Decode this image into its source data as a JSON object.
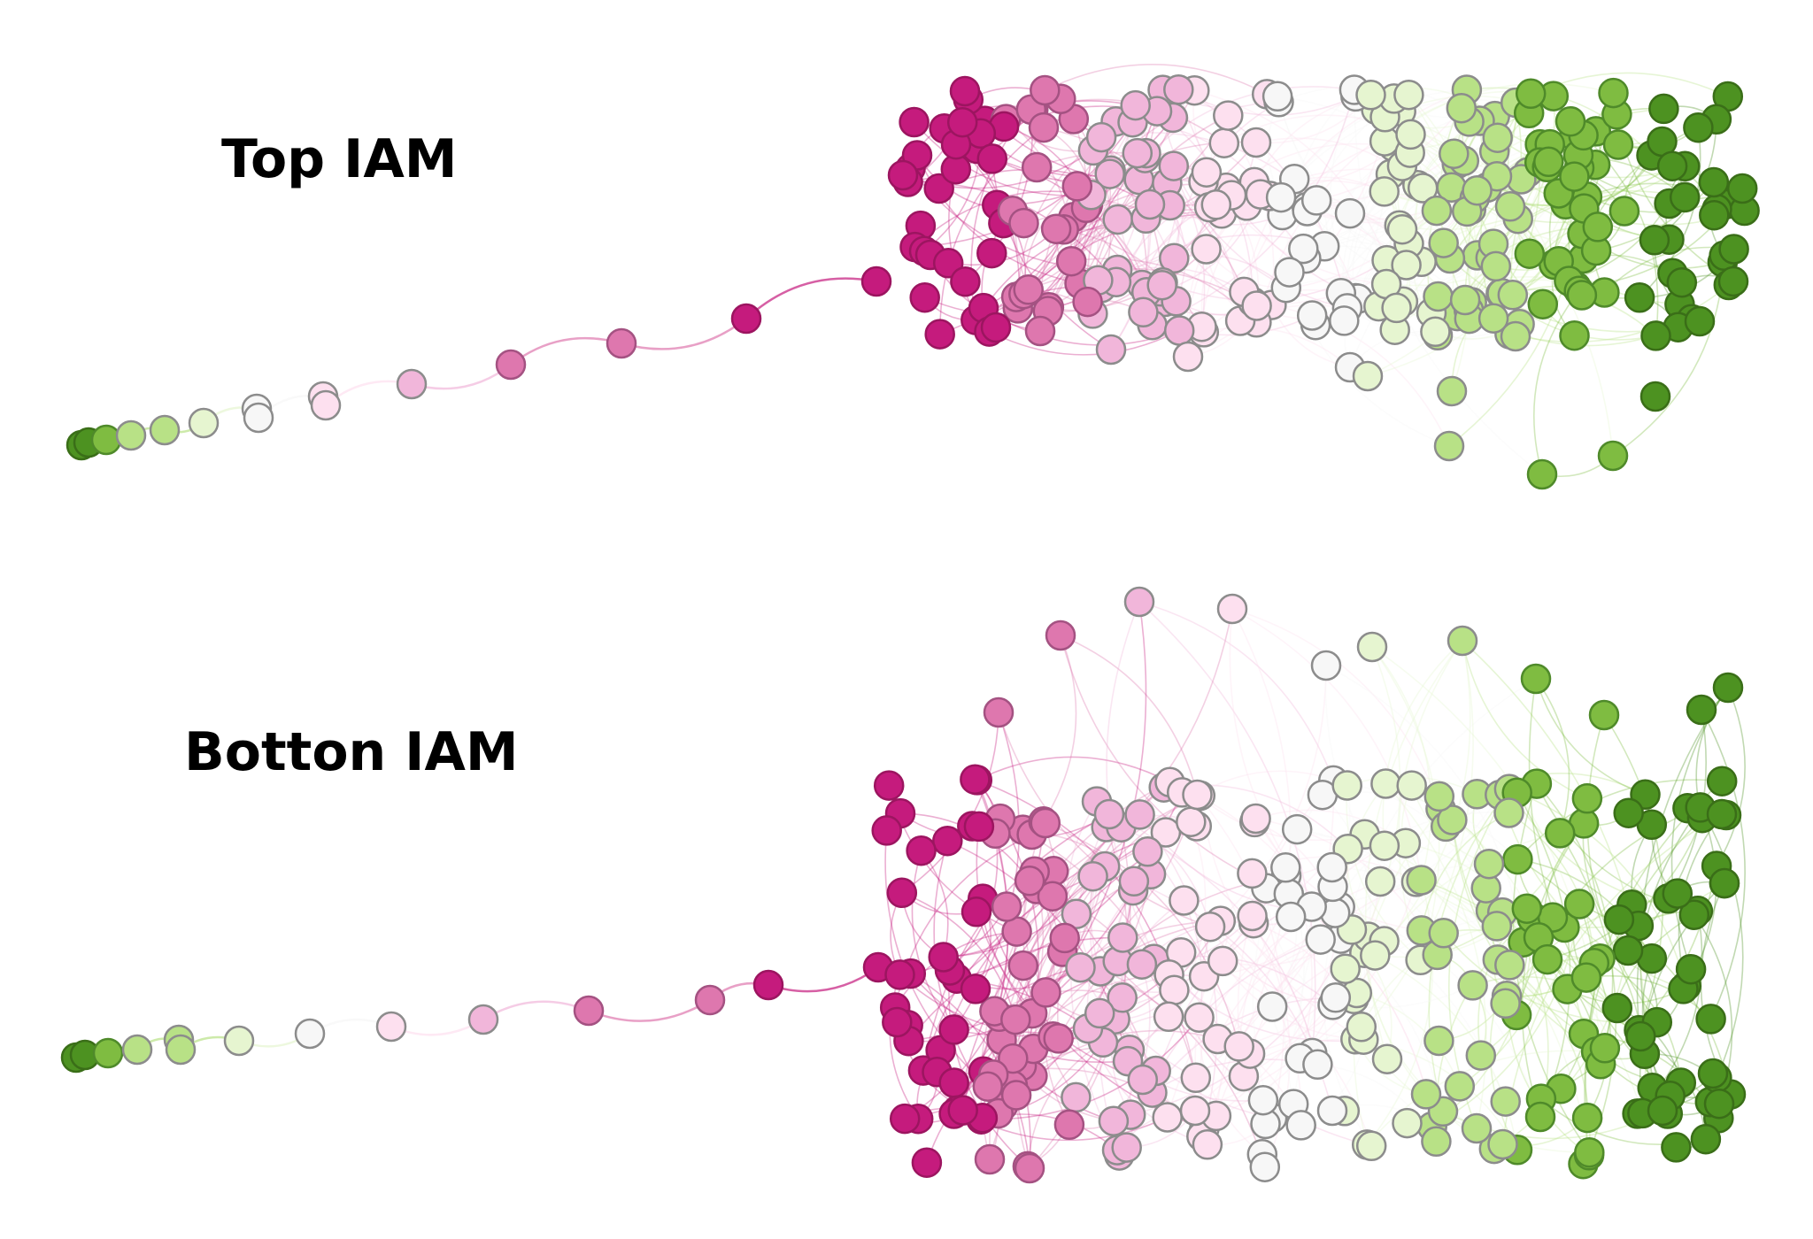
{
  "panels": [
    {
      "id": "top",
      "label": "Top IAM"
    },
    {
      "id": "bottom",
      "label": "Botton IAM"
    }
  ],
  "colors": {
    "magenta_dark": "#c51b7d",
    "magenta_mid": "#de77ae",
    "magenta_light": "#f1b6da",
    "pink_pale": "#fde0ef",
    "neutral": "#f7f7f7",
    "green_pale": "#e6f5d0",
    "green_light": "#b8e186",
    "green_mid": "#7fbc41",
    "green_dark": "#4d9221",
    "node_stroke": "#8c8c8c"
  },
  "legend": []
}
